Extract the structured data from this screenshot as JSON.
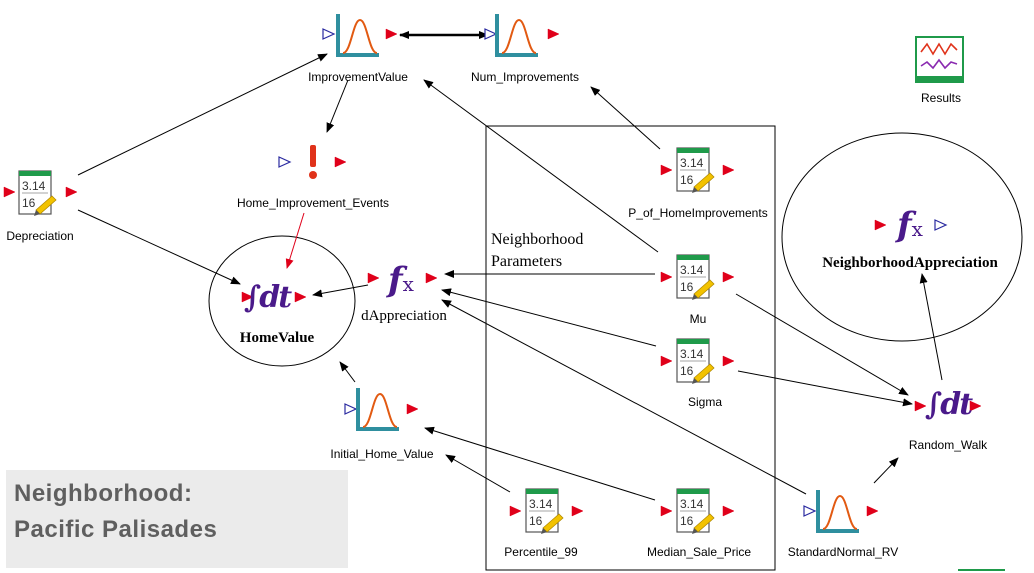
{
  "banner": {
    "line1": "Neighborhood:",
    "line2": "Pacific Palisades"
  },
  "group": {
    "title_line1": "Neighborhood",
    "title_line2": "Parameters"
  },
  "results": {
    "label": "Results"
  },
  "colors": {
    "port": "#e0001a",
    "dist_frame": "#2f8f9f",
    "dist_curve": "#e25a12",
    "data_bar": "#1f9a4a",
    "pencil": "#f2c200",
    "integral": "#4a1a8a",
    "event": "#e0321a"
  },
  "nodes": {
    "improvement_value": {
      "label": "ImprovementValue",
      "type": "distribution",
      "icon": "bell-curve-icon"
    },
    "num_improvements": {
      "label": "Num_Improvements",
      "type": "distribution",
      "icon": "bell-curve-icon"
    },
    "home_improvement_events": {
      "label": "Home_Improvement_Events",
      "type": "event",
      "icon": "exclamation-icon"
    },
    "depreciation": {
      "label": "Depreciation",
      "type": "data",
      "icon": "data-element-icon",
      "value_text": "3.14",
      "sub_text": "16"
    },
    "p_of_homeimprovements": {
      "label": "P_of_HomeImprovements",
      "type": "data",
      "icon": "data-element-icon",
      "value_text": "3.14",
      "sub_text": "16"
    },
    "home_value": {
      "label": "HomeValue",
      "type": "integrator",
      "icon": "integral-icon",
      "symbol": "∫dt"
    },
    "d_appreciation": {
      "label": "dAppreciation",
      "type": "expression",
      "icon": "function-icon",
      "symbol": "f",
      "subsymbol": "x"
    },
    "mu": {
      "label": "Mu",
      "type": "data",
      "icon": "data-element-icon",
      "value_text": "3.14",
      "sub_text": "16"
    },
    "sigma": {
      "label": "Sigma",
      "type": "data",
      "icon": "data-element-icon",
      "value_text": "3.14",
      "sub_text": "16"
    },
    "initial_home_value": {
      "label": "Initial_Home_Value",
      "type": "distribution",
      "icon": "bell-curve-icon"
    },
    "percentile_99": {
      "label": "Percentile_99",
      "type": "data",
      "icon": "data-element-icon",
      "value_text": "3.14",
      "sub_text": "16"
    },
    "median_sale_price": {
      "label": "Median_Sale_Price",
      "type": "data",
      "icon": "data-element-icon",
      "value_text": "3.14",
      "sub_text": "16"
    },
    "standard_normal_rv": {
      "label": "StandardNormal_RV",
      "type": "distribution",
      "icon": "bell-curve-icon"
    },
    "random_walk": {
      "label": "Random_Walk",
      "type": "integrator",
      "icon": "integral-icon",
      "symbol": "∫dt"
    },
    "neighborhood_appreciation": {
      "label": "NeighborhoodAppreciation",
      "type": "expression",
      "icon": "function-icon",
      "symbol": "f",
      "subsymbol": "x"
    }
  },
  "links": [
    {
      "from": "num_improvements",
      "to": "improvement_value",
      "style": "bold"
    },
    {
      "from": "improvement_value",
      "to": "home_improvement_events",
      "style": "normal"
    },
    {
      "from": "home_improvement_events",
      "to": "home_value",
      "style": "red"
    },
    {
      "from": "depreciation",
      "to": "improvement_value",
      "style": "normal"
    },
    {
      "from": "depreciation",
      "to": "home_value",
      "style": "normal"
    },
    {
      "from": "p_of_homeimprovements",
      "to": "num_improvements",
      "style": "normal"
    },
    {
      "from": "mu",
      "to": "improvement_value",
      "style": "normal"
    },
    {
      "from": "d_appreciation",
      "to": "home_value",
      "style": "normal"
    },
    {
      "from": "mu",
      "to": "d_appreciation",
      "style": "normal"
    },
    {
      "from": "sigma",
      "to": "d_appreciation",
      "style": "normal"
    },
    {
      "from": "standard_normal_rv",
      "to": "d_appreciation",
      "style": "normal"
    },
    {
      "from": "initial_home_value",
      "to": "home_value",
      "style": "normal"
    },
    {
      "from": "percentile_99",
      "to": "initial_home_value",
      "style": "normal"
    },
    {
      "from": "median_sale_price",
      "to": "initial_home_value",
      "style": "normal"
    },
    {
      "from": "mu",
      "to": "random_walk",
      "style": "normal"
    },
    {
      "from": "sigma",
      "to": "random_walk",
      "style": "normal"
    },
    {
      "from": "standard_normal_rv",
      "to": "random_walk",
      "style": "normal"
    },
    {
      "from": "random_walk",
      "to": "neighborhood_appreciation",
      "style": "normal"
    }
  ]
}
